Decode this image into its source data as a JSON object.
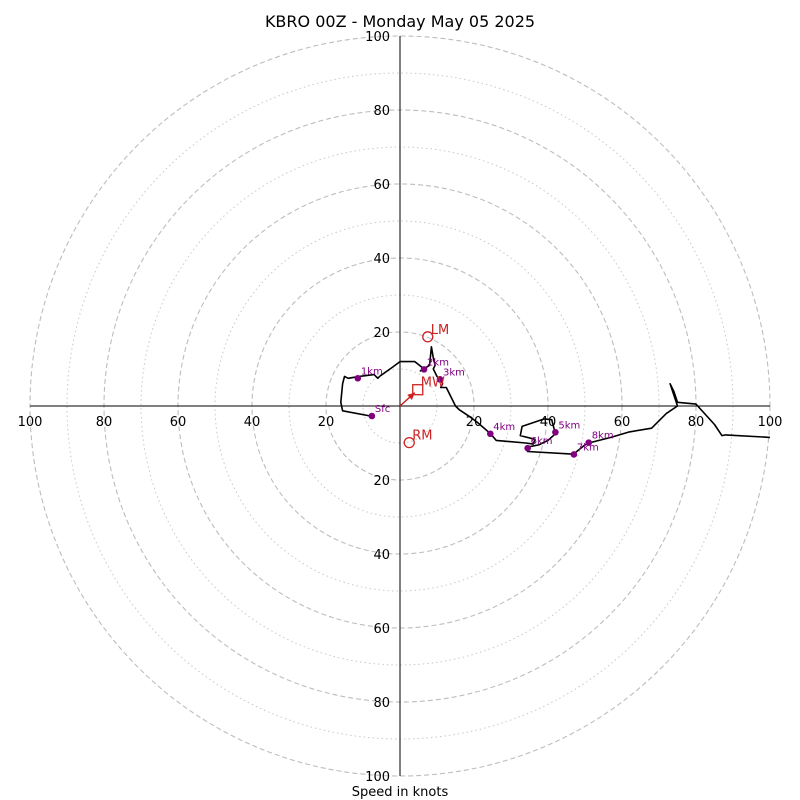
{
  "chart_data": {
    "type": "scatter",
    "subtype": "hodograph",
    "title": "KBRO 00Z - Monday May 05 2025",
    "xlabel": "Speed in knots",
    "xlim": [
      -100,
      100
    ],
    "ylim": [
      -100,
      100
    ],
    "major_rings": [
      20,
      40,
      60,
      80,
      100
    ],
    "minor_rings": [
      10,
      30,
      50,
      70,
      90
    ],
    "x_tick_labels": [
      "100",
      "80",
      "60",
      "40",
      "20",
      "20",
      "40",
      "60",
      "80",
      "100"
    ],
    "x_tick_values": [
      -100,
      -80,
      -60,
      -40,
      -20,
      20,
      40,
      60,
      80,
      100
    ],
    "y_tick_labels": [
      "100",
      "80",
      "60",
      "40",
      "20",
      "20",
      "40",
      "60",
      "80",
      "100"
    ],
    "y_tick_values": [
      100,
      80,
      60,
      40,
      20,
      -20,
      -40,
      -60,
      -80,
      -100
    ],
    "grid": true,
    "line_color": "#000000",
    "marker_color": "#800080",
    "motion_color": "#cc2222",
    "trace": [
      [
        -7.5,
        -2.8
      ],
      [
        -15.5,
        -1.3
      ],
      [
        -16,
        1
      ],
      [
        -15.5,
        6
      ],
      [
        -15,
        8
      ],
      [
        -14,
        7.5
      ],
      [
        -11,
        8
      ],
      [
        -7,
        8.5
      ],
      [
        -6,
        7.5
      ],
      [
        -5.5,
        8
      ],
      [
        -2,
        10.5
      ],
      [
        0,
        12
      ],
      [
        1.5,
        12
      ],
      [
        4,
        12
      ],
      [
        6.5,
        10
      ],
      [
        5.5,
        9.5
      ],
      [
        8,
        11
      ],
      [
        8.5,
        16
      ],
      [
        9,
        13
      ],
      [
        9.5,
        11
      ],
      [
        9,
        10
      ],
      [
        10,
        8
      ],
      [
        11,
        7
      ],
      [
        11.5,
        6
      ],
      [
        11,
        5
      ],
      [
        12.5,
        5
      ],
      [
        15,
        0
      ],
      [
        16,
        -1
      ],
      [
        19,
        -3
      ],
      [
        21,
        -4.5
      ],
      [
        24.5,
        -7.5
      ],
      [
        26,
        -9.3
      ],
      [
        34,
        -10
      ],
      [
        36,
        -10.3
      ],
      [
        36.5,
        -9
      ],
      [
        32.5,
        -8
      ],
      [
        33,
        -5.5
      ],
      [
        39,
        -3.5
      ],
      [
        41,
        -3.7
      ],
      [
        42,
        -7.5
      ],
      [
        40,
        -9.3
      ],
      [
        37.5,
        -10.5
      ],
      [
        35,
        -11
      ],
      [
        34.5,
        -12.3
      ],
      [
        46.5,
        -13
      ],
      [
        47.5,
        -12.5
      ],
      [
        50,
        -10.5
      ],
      [
        51,
        -10
      ],
      [
        57,
        -8.5
      ],
      [
        62,
        -7
      ],
      [
        68,
        -6
      ],
      [
        72,
        -2
      ],
      [
        75,
        0
      ],
      [
        73,
        6
      ],
      [
        74,
        4
      ],
      [
        75,
        1
      ],
      [
        80,
        0.5
      ],
      [
        85,
        -5
      ],
      [
        87,
        -8
      ],
      [
        88,
        -7.8
      ],
      [
        100,
        -8.5
      ]
    ],
    "height_markers": [
      {
        "label": "Sfc",
        "u": -7.6,
        "v": -2.7
      },
      {
        "label": "1km",
        "u": -11.4,
        "v": 7.5
      },
      {
        "label": "2km",
        "u": 6.5,
        "v": 9.9
      },
      {
        "label": "3km",
        "u": 10.8,
        "v": 7.2
      },
      {
        "label": "4km",
        "u": 24.4,
        "v": -7.5
      },
      {
        "label": "5km",
        "u": 42,
        "v": -7.1
      },
      {
        "label": "6km",
        "u": 34.5,
        "v": -11.4
      },
      {
        "label": "7km",
        "u": 47,
        "v": -13.1
      },
      {
        "label": "8km",
        "u": 51,
        "v": -9.9
      }
    ],
    "storm_motion": [
      {
        "label": "LM",
        "u": 7.5,
        "v": 18.7,
        "symbol": "circle"
      },
      {
        "label": "RM",
        "u": 2.5,
        "v": -9.9,
        "symbol": "circle"
      },
      {
        "label": "MW",
        "u": 4.8,
        "v": 4.4,
        "symbol": "square"
      }
    ],
    "mean_wind_vector": {
      "u": 4.8,
      "v": 4.4
    }
  }
}
